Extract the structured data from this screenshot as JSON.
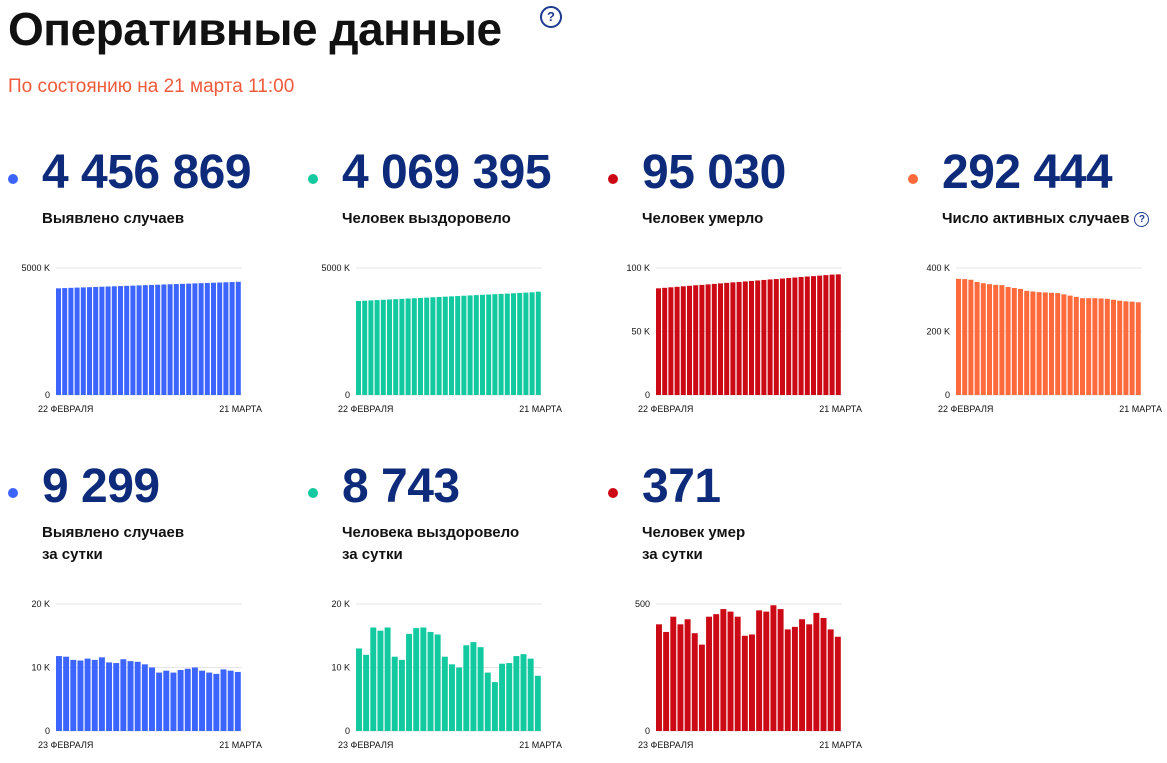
{
  "header": {
    "title": "Оперативные данные",
    "help": "?",
    "subtitle": "По состоянию на 21 марта 11:00"
  },
  "cards": [
    {
      "value": "4 456 869",
      "label_lines": [
        "Выявлено случаев"
      ],
      "color": "#3c64ff",
      "help": ""
    },
    {
      "value": "4 069 395",
      "label_lines": [
        "Человек выздоровело"
      ],
      "color": "#12c9a0",
      "help": ""
    },
    {
      "value": "95 030",
      "label_lines": [
        "Человек умерло"
      ],
      "color": "#cc0a15",
      "help": ""
    },
    {
      "value": "292 444",
      "label_lines": [
        "Число активных случаев"
      ],
      "color": "#ff6a3c",
      "help": "?"
    },
    {
      "value": "9 299",
      "label_lines": [
        "Выявлено случаев",
        "за сутки"
      ],
      "color": "#3c64ff",
      "help": ""
    },
    {
      "value": "8 743",
      "label_lines": [
        "Человека выздоровело",
        "за сутки"
      ],
      "color": "#12c9a0",
      "help": ""
    },
    {
      "value": "371",
      "label_lines": [
        "Человек умер",
        "за сутки"
      ],
      "color": "#cc0a15",
      "help": ""
    }
  ],
  "chart_data": [
    {
      "type": "bar",
      "series_color": "#3c64ff",
      "ylim": [
        0,
        5000
      ],
      "y_ticks": [
        0,
        5000
      ],
      "y_tick_labels": [
        "0",
        "5000 K"
      ],
      "x_labels": [
        "22 ФЕВРАЛЯ",
        "21 МАРТА"
      ],
      "values": [
        4200,
        4210,
        4219,
        4228,
        4236,
        4245,
        4254,
        4263,
        4271,
        4280,
        4289,
        4298,
        4306,
        4315,
        4324,
        4333,
        4341,
        4350,
        4359,
        4368,
        4376,
        4385,
        4394,
        4403,
        4411,
        4420,
        4429,
        4438,
        4447,
        4457
      ]
    },
    {
      "type": "bar",
      "series_color": "#12c9a0",
      "ylim": [
        0,
        5000
      ],
      "y_ticks": [
        0,
        5000
      ],
      "y_tick_labels": [
        "0",
        "5000 K"
      ],
      "x_labels": [
        "22 ФЕВРАЛЯ",
        "21 МАРТА"
      ],
      "values": [
        3700,
        3712,
        3724,
        3737,
        3749,
        3761,
        3773,
        3786,
        3798,
        3810,
        3822,
        3834,
        3847,
        3859,
        3871,
        3883,
        3896,
        3908,
        3920,
        3932,
        3944,
        3957,
        3969,
        3981,
        3993,
        4006,
        4018,
        4030,
        4043,
        4069
      ]
    },
    {
      "type": "bar",
      "series_color": "#cc0a15",
      "ylim": [
        0,
        100
      ],
      "y_ticks": [
        0,
        50,
        100
      ],
      "y_tick_labels": [
        "0",
        "50 K",
        "100 K"
      ],
      "x_labels": [
        "22 ФЕВРАЛЯ",
        "21 МАРТА"
      ],
      "values": [
        84.0,
        84.4,
        84.8,
        85.2,
        85.6,
        86.0,
        86.4,
        86.7,
        87.1,
        87.5,
        87.9,
        88.3,
        88.7,
        89.0,
        89.4,
        89.8,
        90.2,
        90.6,
        91.0,
        91.3,
        91.7,
        92.1,
        92.5,
        92.9,
        93.3,
        93.6,
        94.0,
        94.4,
        94.8,
        95.0
      ]
    },
    {
      "type": "bar",
      "series_color": "#ff6a3c",
      "ylim": [
        0,
        400
      ],
      "y_ticks": [
        0,
        200,
        400
      ],
      "y_tick_labels": [
        "0",
        "200 K",
        "400 K"
      ],
      "x_labels": [
        "22 ФЕВРАЛЯ",
        "21 МАРТА"
      ],
      "values": [
        366,
        365,
        363,
        356,
        352,
        349,
        347,
        346,
        340,
        337,
        334,
        328,
        326,
        324,
        323,
        322,
        321,
        317,
        313,
        309,
        305,
        305,
        305,
        304,
        303,
        300,
        297,
        295,
        294,
        292
      ]
    },
    {
      "type": "bar",
      "series_color": "#3c64ff",
      "ylim": [
        0,
        20
      ],
      "y_ticks": [
        0,
        10,
        20
      ],
      "y_tick_labels": [
        "0",
        "10 K",
        "20 K"
      ],
      "x_labels": [
        "23 ФЕВРАЛЯ",
        "21 МАРТА"
      ],
      "values": [
        11.8,
        11.7,
        11.2,
        11.1,
        11.4,
        11.2,
        11.6,
        10.8,
        10.7,
        11.3,
        11.0,
        10.9,
        10.5,
        10.0,
        9.2,
        9.5,
        9.2,
        9.6,
        9.8,
        10.0,
        9.5,
        9.2,
        9.0,
        9.7,
        9.5,
        9.3
      ]
    },
    {
      "type": "bar",
      "series_color": "#12c9a0",
      "ylim": [
        0,
        20
      ],
      "y_ticks": [
        0,
        10,
        20
      ],
      "y_tick_labels": [
        "0",
        "10 K",
        "20 K"
      ],
      "x_labels": [
        "23 ФЕВРАЛЯ",
        "21 МАРТА"
      ],
      "values": [
        13.0,
        12.0,
        16.3,
        15.8,
        16.3,
        11.7,
        11.2,
        15.3,
        16.2,
        16.3,
        15.6,
        15.2,
        11.7,
        10.5,
        10.0,
        13.5,
        14.0,
        13.2,
        9.2,
        7.7,
        10.6,
        10.7,
        11.8,
        12.1,
        11.4,
        8.7
      ]
    },
    {
      "type": "bar",
      "series_color": "#cc0a15",
      "ylim": [
        0,
        500
      ],
      "y_ticks": [
        0,
        500
      ],
      "y_tick_labels": [
        "0",
        "500"
      ],
      "x_labels": [
        "23 ФЕВРАЛЯ",
        "21 МАРТА"
      ],
      "values": [
        420,
        390,
        450,
        420,
        440,
        385,
        340,
        450,
        460,
        480,
        470,
        450,
        375,
        380,
        475,
        470,
        495,
        480,
        400,
        410,
        440,
        420,
        465,
        445,
        400,
        371
      ]
    }
  ]
}
